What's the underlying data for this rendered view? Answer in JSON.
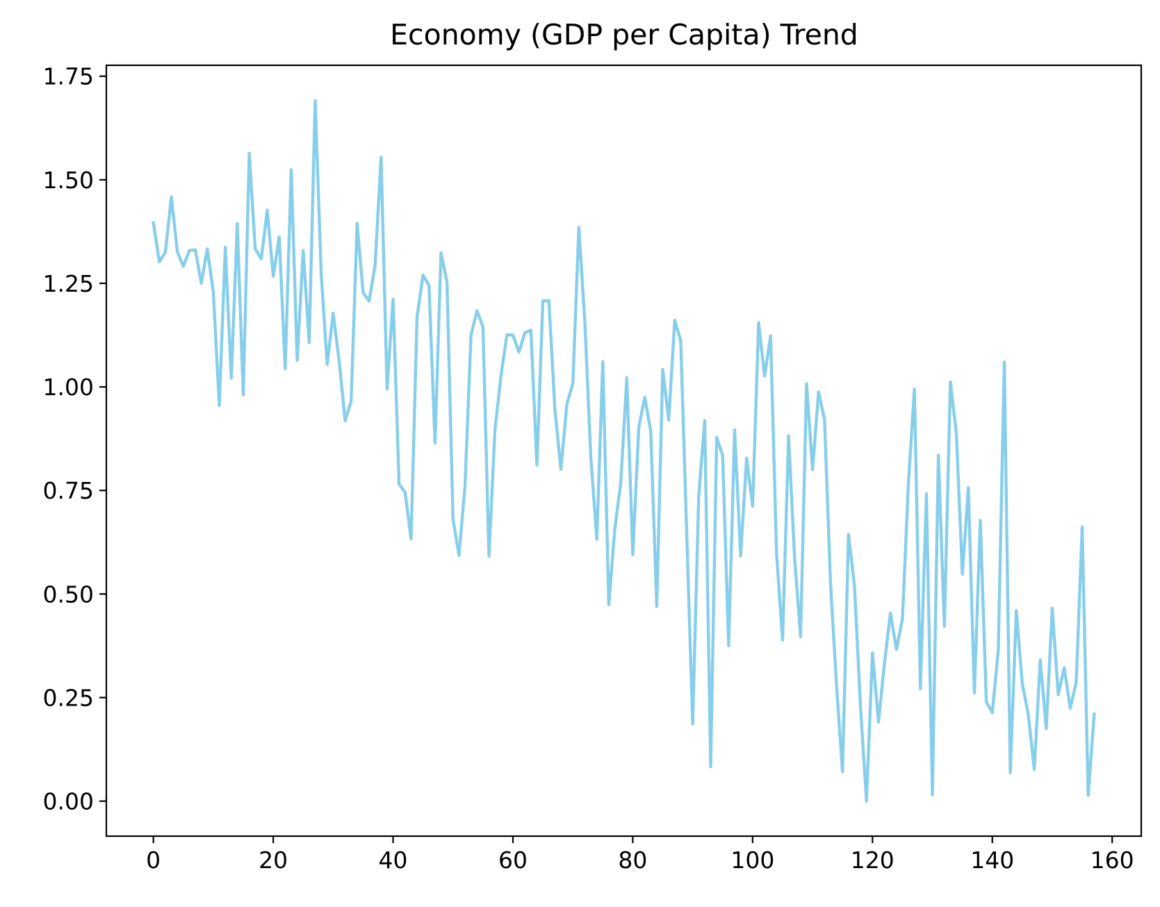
{
  "chart_data": {
    "type": "line",
    "title": "Economy (GDP per Capita) Trend",
    "xlabel": "",
    "ylabel": "",
    "xlim": [
      -7.85,
      164.85
    ],
    "ylim": [
      -0.0846,
      1.7764
    ],
    "grid": false,
    "legend": null,
    "x_ticks": [
      0,
      20,
      40,
      60,
      80,
      100,
      120,
      140,
      160
    ],
    "x_tick_labels": [
      "0",
      "20",
      "40",
      "60",
      "80",
      "100",
      "120",
      "140",
      "160"
    ],
    "y_ticks": [
      0.0,
      0.25,
      0.5,
      0.75,
      1.0,
      1.25,
      1.5,
      1.75
    ],
    "y_tick_labels": [
      "0.00",
      "0.25",
      "0.50",
      "0.75",
      "1.00",
      "1.25",
      "1.50",
      "1.75"
    ],
    "series": [
      {
        "name": "Economy (GDP per Capita)",
        "color": "#87CEEB",
        "x_start": 0,
        "x_step": 1,
        "values": [
          1.396,
          1.302,
          1.325,
          1.459,
          1.326,
          1.291,
          1.329,
          1.331,
          1.25,
          1.333,
          1.229,
          0.955,
          1.337,
          1.021,
          1.394,
          0.981,
          1.564,
          1.333,
          1.309,
          1.427,
          1.267,
          1.362,
          1.044,
          1.524,
          1.064,
          1.329,
          1.107,
          1.691,
          1.274,
          1.054,
          1.178,
          1.063,
          0.918,
          0.965,
          1.395,
          1.228,
          1.207,
          1.294,
          1.554,
          0.995,
          1.212,
          0.765,
          0.746,
          0.633,
          1.169,
          1.27,
          1.245,
          0.864,
          1.324,
          1.253,
          0.681,
          0.593,
          0.76,
          1.124,
          1.184,
          1.145,
          0.591,
          0.896,
          1.026,
          1.126,
          1.125,
          1.084,
          1.131,
          1.137,
          0.811,
          1.208,
          1.208,
          0.947,
          0.801,
          0.958,
          1.008,
          1.385,
          1.158,
          0.829,
          0.632,
          1.061,
          0.474,
          0.657,
          0.769,
          1.022,
          0.595,
          0.902,
          0.975,
          0.893,
          0.47,
          1.042,
          0.92,
          1.161,
          1.112,
          0.647,
          0.186,
          0.735,
          0.919,
          0.083,
          0.878,
          0.834,
          0.375,
          0.896,
          0.592,
          0.828,
          0.712,
          1.155,
          1.026,
          1.123,
          0.595,
          0.389,
          0.882,
          0.588,
          0.397,
          1.008,
          0.8,
          0.988,
          0.921,
          0.525,
          0.28,
          0.071,
          0.644,
          0.519,
          0.228,
          0.0,
          0.358,
          0.191,
          0.333,
          0.454,
          0.366,
          0.44,
          0.768,
          0.995,
          0.271,
          0.742,
          0.015,
          0.835,
          0.422,
          1.012,
          0.887,
          0.548,
          0.757,
          0.261,
          0.678,
          0.24,
          0.213,
          0.366,
          1.06,
          0.068,
          0.46,
          0.284,
          0.209,
          0.077,
          0.341,
          0.175,
          0.466,
          0.257,
          0.322,
          0.224,
          0.287,
          0.662,
          0.014,
          0.21
        ]
      }
    ]
  }
}
